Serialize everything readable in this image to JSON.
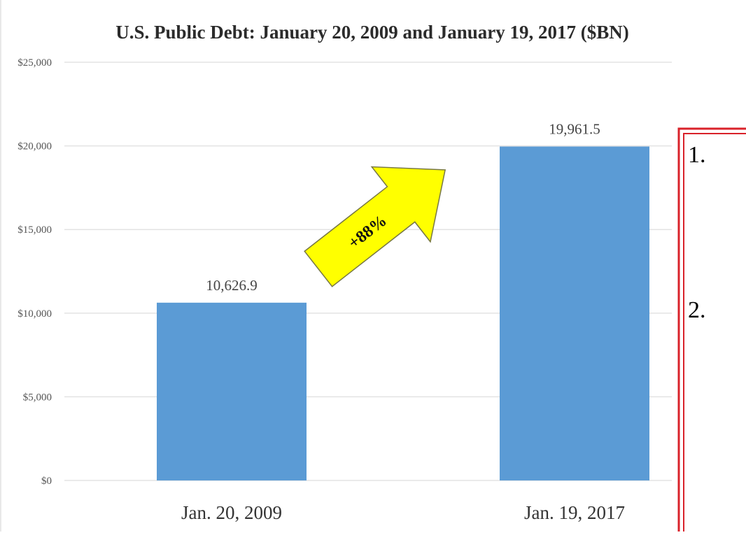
{
  "chart_data": {
    "type": "bar",
    "title": "U.S. Public Debt: January 20, 2009 and January 19, 2017 ($BN)",
    "categories": [
      "Jan. 20, 2009",
      "Jan. 19, 2017"
    ],
    "values": [
      10626.9,
      19961.5
    ],
    "data_labels": [
      "10,626.9",
      "19,961.5"
    ],
    "y_ticks": [
      0,
      5000,
      10000,
      15000,
      20000,
      25000
    ],
    "y_tick_labels": [
      "$0",
      "$5,000",
      "$10,000",
      "$15,000",
      "$20,000",
      "$25,000"
    ],
    "ylim": [
      0,
      25000
    ],
    "grid": true,
    "bar_color": "#5b9bd5",
    "annotation": {
      "text": "+88%",
      "arrow_color": "#ffff00"
    }
  },
  "side_panel": {
    "border_color": "#d9222a",
    "items": [
      "1.",
      "2."
    ]
  }
}
